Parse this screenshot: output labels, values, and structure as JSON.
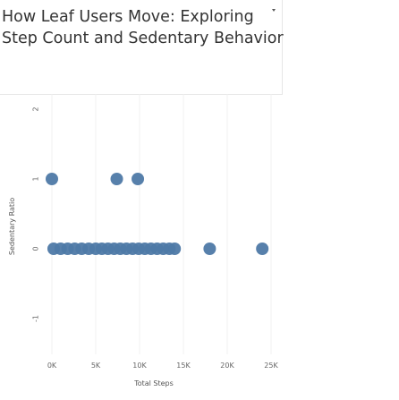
{
  "chart_data": {
    "type": "scatter",
    "title": "How Leaf Users Move: Exploring Step Count and Sedentary Behavior",
    "title_lines": [
      "How Leaf Users Move: Exploring",
      "Step Count and Sedentary Behavior"
    ],
    "xlabel": "Total Steps",
    "ylabel": "Sedentary Ratio",
    "xlim": [
      0,
      25000
    ],
    "ylim": [
      -1,
      2
    ],
    "x_ticks": [
      0,
      5000,
      10000,
      15000,
      20000,
      25000
    ],
    "x_tick_labels": [
      "0K",
      "5K",
      "10K",
      "15K",
      "20K",
      "25K"
    ],
    "y_ticks": [
      -1,
      0,
      1,
      2
    ],
    "y_tick_labels": [
      "-1",
      "0",
      "1",
      "2"
    ],
    "grid": true,
    "marker_color": "#4e79a7",
    "points": [
      {
        "x": 0,
        "y": 1
      },
      {
        "x": 7400,
        "y": 1
      },
      {
        "x": 9800,
        "y": 1
      },
      {
        "x": 200,
        "y": 0
      },
      {
        "x": 1000,
        "y": 0
      },
      {
        "x": 1800,
        "y": 0
      },
      {
        "x": 2600,
        "y": 0
      },
      {
        "x": 3400,
        "y": 0
      },
      {
        "x": 4200,
        "y": 0
      },
      {
        "x": 5000,
        "y": 0
      },
      {
        "x": 5700,
        "y": 0
      },
      {
        "x": 6400,
        "y": 0
      },
      {
        "x": 7100,
        "y": 0
      },
      {
        "x": 7800,
        "y": 0
      },
      {
        "x": 8500,
        "y": 0
      },
      {
        "x": 9200,
        "y": 0
      },
      {
        "x": 9900,
        "y": 0
      },
      {
        "x": 10600,
        "y": 0
      },
      {
        "x": 11300,
        "y": 0
      },
      {
        "x": 12000,
        "y": 0
      },
      {
        "x": 12700,
        "y": 0
      },
      {
        "x": 13400,
        "y": 0
      },
      {
        "x": 14000,
        "y": 0
      },
      {
        "x": 18000,
        "y": 0
      },
      {
        "x": 24000,
        "y": 0
      }
    ]
  }
}
